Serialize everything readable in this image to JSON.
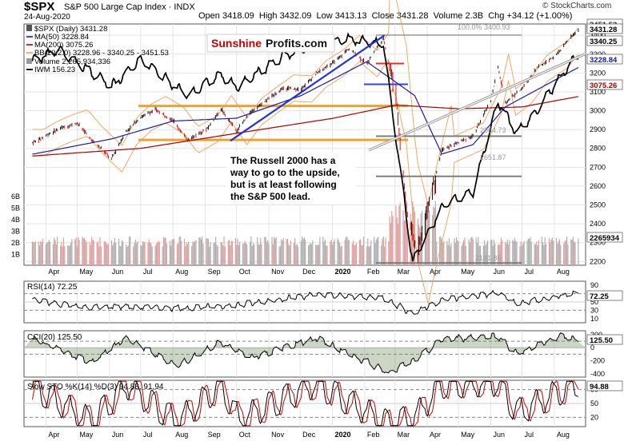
{
  "header": {
    "symbol": "$SPX",
    "description": "S&P 500 Large Cap Index",
    "exchange": "INDX",
    "date": "24-Aug-2020",
    "open_label": "Open",
    "open": "3418.09",
    "high_label": "High",
    "high": "3432.09",
    "low_label": "Low",
    "low": "3413.13",
    "close_label": "Close",
    "close": "3431.28",
    "volume_label": "Volume",
    "volume": "2.3B",
    "chg_label": "Chg",
    "chg": "+34.12 (+1.00%)",
    "watermark": "© StockCharts.com"
  },
  "legend": {
    "spx": "$SPX (Daily) 3431.28",
    "ma50": "MA(50) 3228.84",
    "ma200": "MA(200) 3075.26",
    "bb": "BB(20,2.0) 3228.96 - 3340.25 - 3451.53",
    "volume": "Volume 2,265,934,336",
    "iwm": "IWM 156.23"
  },
  "logo": {
    "part1": "Sunshine",
    "part2": "Profits.com"
  },
  "annotation": {
    "line1": "The Russell 2000 has a",
    "line2": "way to go to the upside,",
    "line3": "but is at least following",
    "line4": "the S&P 500 lead."
  },
  "fib_labels": [
    "100.0% 3400.93",
    "2864.73",
    "2651.87",
    "2191.86"
  ],
  "price_badges": {
    "close": "3431.28",
    "bb_upper": "3451.53",
    "bb_mid": "3340.25",
    "ma50": "3228.84",
    "ma200": "3075.26",
    "volume": "2265934"
  },
  "colors": {
    "price_up": "#000000",
    "price_down": "#cc0000",
    "ma50": "#1a1aaa",
    "ma200": "#aa0000",
    "bollinger": "#f0a050",
    "iwm": "#000000",
    "support_orange": "#f0a030",
    "trend_blue": "#2233dd",
    "fib_gray": "#888888",
    "rsi_line": "#000000",
    "cci_fill": "#6a8a5a",
    "sto_d": "#cc0000",
    "logo_red": "#cc0000"
  },
  "chart_data": [
    {
      "type": "line",
      "panel": "price",
      "title": "$SPX S&P 500 Large Cap Index",
      "y_axis_ticks": [
        2200,
        2300,
        2400,
        2500,
        2600,
        2700,
        2800,
        2900,
        3000,
        3100,
        3200,
        3300,
        3400
      ],
      "ylim": [
        2180,
        3460
      ],
      "x_tick_labels": [
        "Apr",
        "May",
        "Jun",
        "Jul",
        "Aug",
        "Sep",
        "Oct",
        "Nov",
        "Dec",
        "2020",
        "Feb",
        "Mar",
        "Apr",
        "May",
        "Jun",
        "Jul",
        "Aug"
      ],
      "series": [
        {
          "name": "$SPX",
          "x": [
            "2019-03-20",
            "2019-04-01",
            "2019-04-15",
            "2019-05-01",
            "2019-05-15",
            "2019-06-03",
            "2019-06-17",
            "2019-07-01",
            "2019-07-15",
            "2019-08-01",
            "2019-08-15",
            "2019-09-03",
            "2019-09-16",
            "2019-10-01",
            "2019-10-15",
            "2019-11-01",
            "2019-11-15",
            "2019-12-02",
            "2019-12-16",
            "2020-01-02",
            "2020-01-17",
            "2020-02-03",
            "2020-02-19",
            "2020-03-02",
            "2020-03-12",
            "2020-03-23",
            "2020-04-01",
            "2020-04-15",
            "2020-05-01",
            "2020-05-15",
            "2020-06-01",
            "2020-06-08",
            "2020-06-15",
            "2020-07-01",
            "2020-07-15",
            "2020-08-03",
            "2020-08-17",
            "2020-08-24"
          ],
          "values": [
            2830,
            2870,
            2905,
            2935,
            2845,
            2745,
            2890,
            2965,
            3005,
            2950,
            2845,
            2905,
            3010,
            2890,
            2995,
            3065,
            3120,
            3115,
            3195,
            3255,
            3330,
            3250,
            3386,
            3085,
            2480,
            2237,
            2470,
            2790,
            2830,
            2865,
            3055,
            3230,
            3045,
            3115,
            3225,
            3295,
            3390,
            3431
          ]
        },
        {
          "name": "MA(50)",
          "x": [
            "2019-03-20",
            "2019-06-03",
            "2019-08-01",
            "2019-10-01",
            "2019-12-02",
            "2020-02-03",
            "2020-03-20",
            "2020-04-15",
            "2020-05-15",
            "2020-06-15",
            "2020-07-15",
            "2020-08-24"
          ],
          "values": [
            2770,
            2850,
            2945,
            2960,
            3080,
            3260,
            3080,
            2770,
            2820,
            3020,
            3110,
            3229
          ]
        },
        {
          "name": "MA(200)",
          "x": [
            "2019-03-20",
            "2019-07-01",
            "2019-10-01",
            "2020-01-02",
            "2020-03-02",
            "2020-05-01",
            "2020-07-01",
            "2020-08-24"
          ],
          "values": [
            2760,
            2800,
            2880,
            2960,
            3030,
            3010,
            3020,
            3075
          ]
        },
        {
          "name": "IWM",
          "x": [
            "2019-03-20",
            "2019-04-15",
            "2019-05-15",
            "2019-06-03",
            "2019-07-01",
            "2019-08-15",
            "2019-09-16",
            "2019-10-01",
            "2019-11-15",
            "2019-12-16",
            "2020-01-17",
            "2020-02-19",
            "2020-03-18",
            "2020-04-15",
            "2020-05-15",
            "2020-06-08",
            "2020-06-26",
            "2020-07-15",
            "2020-08-03",
            "2020-08-24"
          ],
          "values": [
            3270,
            3320,
            3200,
            3130,
            3270,
            3080,
            3190,
            3120,
            3290,
            3350,
            3380,
            3350,
            2195,
            2490,
            2570,
            3050,
            2880,
            3000,
            3150,
            3300
          ]
        }
      ],
      "fibonacci_levels": [
        3400.93,
        2864.73,
        2651.87,
        2191.86
      ],
      "support_lines": [
        3025,
        2845
      ],
      "xlabel": "",
      "ylabel": ""
    },
    {
      "type": "bar",
      "panel": "volume",
      "y_axis_ticks_text": [
        "1B",
        "2B",
        "3B",
        "4B",
        "5B",
        "6B"
      ],
      "note": "daily volume bars, heaviest in March 2020"
    },
    {
      "type": "line",
      "panel": "RSI",
      "title": "RSI(14) 72.25",
      "y_axis_ticks": [
        10,
        30,
        50,
        70,
        90
      ],
      "ylim": [
        0,
        100
      ],
      "last_value": 72.25,
      "x": [
        "2019-03-20",
        "2019-05-15",
        "2019-06-03",
        "2019-08-15",
        "2019-10-01",
        "2019-12-16",
        "2020-02-19",
        "2020-03-18",
        "2020-04-15",
        "2020-06-08",
        "2020-06-26",
        "2020-08-24"
      ],
      "values": [
        55,
        35,
        40,
        35,
        42,
        68,
        60,
        22,
        55,
        72,
        45,
        72
      ]
    },
    {
      "type": "area",
      "panel": "CCI",
      "title": "CCI(20) 125.50",
      "y_axis_ticks": [
        -400,
        -200,
        0,
        100,
        200
      ],
      "ylim": [
        -450,
        260
      ],
      "last_value": 125.5,
      "x": [
        "2019-03-20",
        "2019-05-15",
        "2019-06-17",
        "2019-08-05",
        "2019-09-16",
        "2019-10-15",
        "2019-12-16",
        "2020-02-24",
        "2020-03-20",
        "2020-04-15",
        "2020-06-08",
        "2020-06-26",
        "2020-08-05",
        "2020-08-24"
      ],
      "values": [
        120,
        -220,
        150,
        -280,
        80,
        -150,
        150,
        -380,
        -200,
        130,
        180,
        -100,
        170,
        125
      ]
    },
    {
      "type": "line",
      "panel": "Slow Stochastic",
      "title": "Slow STO %K(14) %D(3) 94.88, 91.94",
      "y_axis_ticks": [
        20,
        50,
        80
      ],
      "ylim": [
        0,
        100
      ],
      "k_last": 94.88,
      "d_last": 91.94,
      "x": [
        "2019-03-20",
        "2019-05-15",
        "2019-06-17",
        "2019-08-05",
        "2019-09-16",
        "2019-10-03",
        "2019-12-16",
        "2020-02-24",
        "2020-03-20",
        "2020-04-15",
        "2020-06-08",
        "2020-06-26",
        "2020-08-24"
      ],
      "values": [
        85,
        10,
        90,
        10,
        90,
        15,
        92,
        5,
        20,
        90,
        95,
        30,
        94.88
      ]
    }
  ]
}
